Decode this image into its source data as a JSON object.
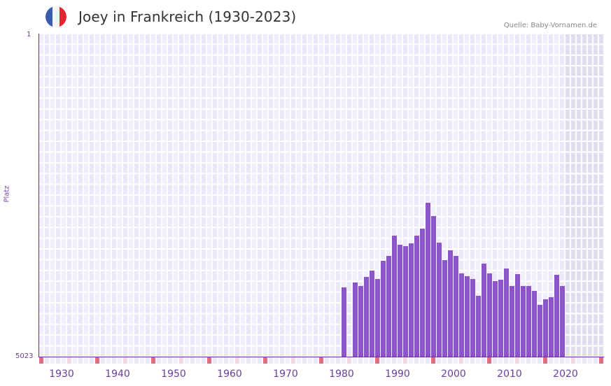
{
  "header": {
    "title": "Joey in Frankreich (1930-2023)",
    "source": "Quelle: Baby-Vornamen.de",
    "flag_colors": [
      "#3a5db0",
      "#f4f4f6",
      "#e2252f"
    ]
  },
  "axes": {
    "y_top_label": "1",
    "y_bottom_label": "5023",
    "y_title": "Platz",
    "x_labels": [
      "1930",
      "1940",
      "1950",
      "1960",
      "1970",
      "1980",
      "1990",
      "2000",
      "2010",
      "2020"
    ]
  },
  "colors": {
    "bar": "#8b55c8",
    "axis": "#6a2fa0",
    "grid_a": "#f1eefb",
    "grid_b": "#ebe6f8",
    "future_shade": "#e2deee",
    "tick_major": "#e07080",
    "tick_minor": "#f5d8e0"
  },
  "chart_data": {
    "type": "bar",
    "title": "Joey in Frankreich (1930-2023)",
    "xlabel": "",
    "ylabel": "Platz",
    "y_inverted": true,
    "ylim": [
      5023,
      1
    ],
    "x_range": [
      1928,
      2028
    ],
    "grid": true,
    "legend": null,
    "categories": [
      1982,
      1984,
      1985,
      1986,
      1987,
      1988,
      1989,
      1990,
      1991,
      1992,
      1993,
      1994,
      1995,
      1996,
      1997,
      1998,
      1999,
      2000,
      2001,
      2002,
      2003,
      2004,
      2005,
      2006,
      2007,
      2008,
      2009,
      2010,
      2011,
      2012,
      2013,
      2014,
      2015,
      2016,
      2017,
      2018,
      2019,
      2020,
      2021
    ],
    "values": [
      3947,
      3871,
      3925,
      3784,
      3686,
      3817,
      3534,
      3458,
      3143,
      3284,
      3306,
      3262,
      3143,
      3034,
      2632,
      2838,
      3251,
      3523,
      3371,
      3458,
      3730,
      3773,
      3817,
      4078,
      3577,
      3730,
      3849,
      3827,
      3653,
      3925,
      3741,
      3925,
      3925,
      4001,
      4219,
      4132,
      4099,
      3752,
      3925
    ]
  }
}
